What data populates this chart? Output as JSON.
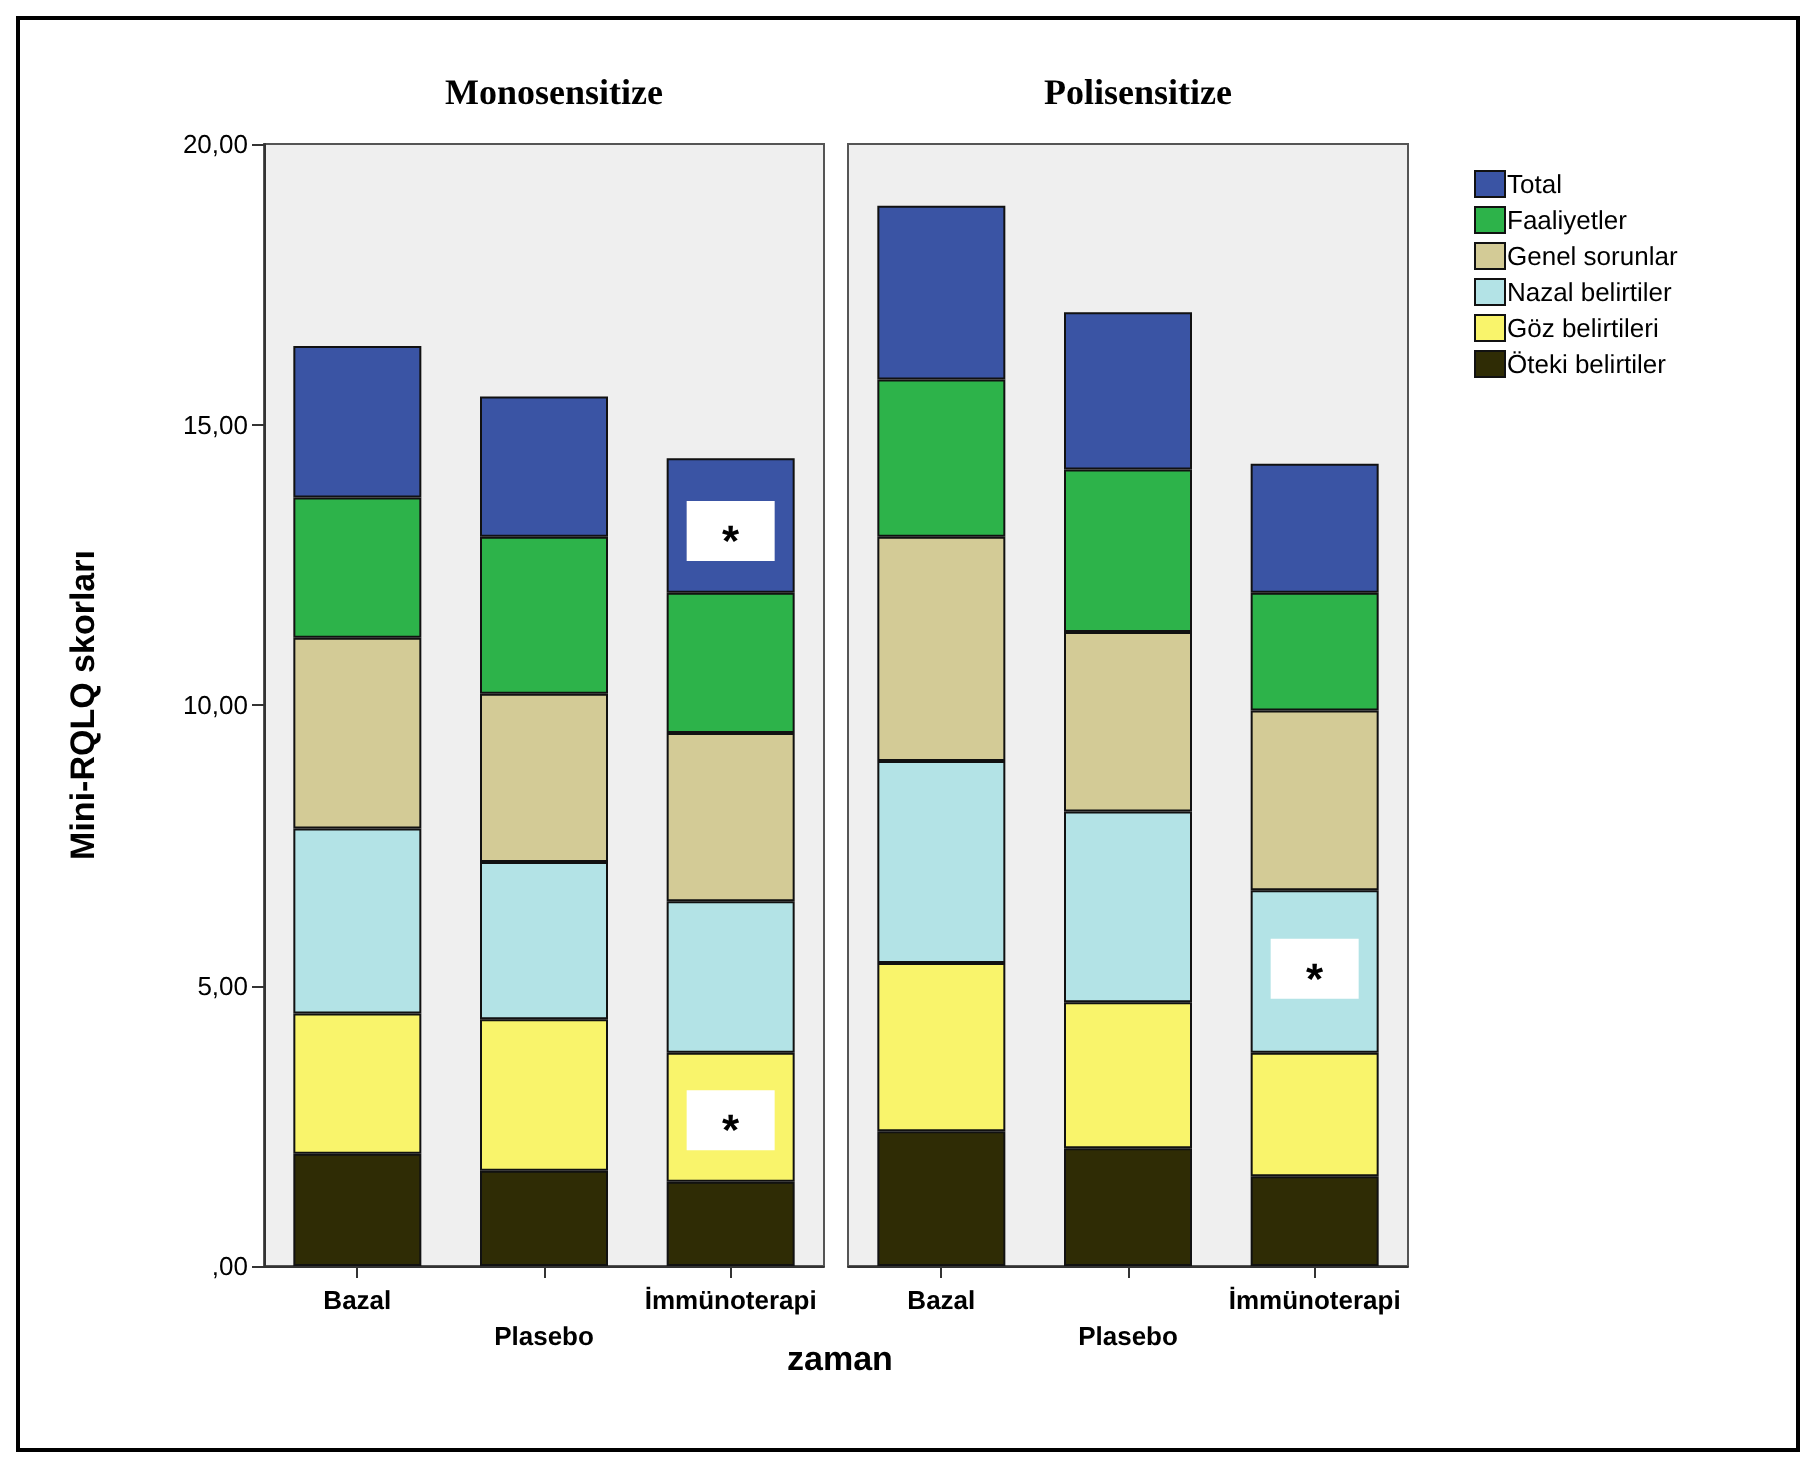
{
  "chart_data": [
    {
      "type": "bar",
      "title": "Monosensitize",
      "ylabel": "Mini-RQLQ skorları",
      "xlabel": "zaman",
      "categories": [
        "Bazal",
        "Plasebo",
        "İmmünoterapi"
      ],
      "stacked": true,
      "ylim": [
        0,
        20
      ],
      "yticks": [
        {
          "value": 0,
          "label": ",00"
        },
        {
          "value": 5,
          "label": "5,00"
        },
        {
          "value": 10,
          "label": "10,00"
        },
        {
          "value": 15,
          "label": "15,00"
        },
        {
          "value": 20,
          "label": "20,00"
        }
      ],
      "grid": false,
      "legend": false,
      "series": [
        {
          "color": "#2f2c05",
          "values": [
            2.0,
            1.7,
            1.5
          ]
        },
        {
          "color": "#f9f46b",
          "values": [
            2.5,
            2.7,
            2.3
          ]
        },
        {
          "color": "#b3e3e6",
          "values": [
            3.3,
            2.8,
            2.7
          ]
        },
        {
          "color": "#d3cb96",
          "values": [
            3.4,
            3.0,
            3.0
          ]
        },
        {
          "color": "#2db34a",
          "values": [
            2.5,
            2.8,
            2.5
          ]
        },
        {
          "color": "#3a54a4",
          "values": [
            2.7,
            2.5,
            2.4
          ]
        }
      ],
      "annotations": [
        {
          "text": "*",
          "x": "İmmünoterapi",
          "y": 13.1
        },
        {
          "text": "*",
          "x": "İmmünoterapi",
          "y": 2.6
        }
      ]
    },
    {
      "type": "bar",
      "title": "Polisensitize",
      "categories": [
        "Bazal",
        "Plasebo",
        "İmmünoterapi"
      ],
      "stacked": true,
      "ylim": [
        0,
        20
      ],
      "tick_labels": "x",
      "grid": false,
      "legend": "right",
      "series": [
        {
          "name": "Öteki belirtiler",
          "color": "#2f2c05",
          "values": [
            2.4,
            2.1,
            1.6
          ]
        },
        {
          "name": "Göz belirtileri",
          "color": "#f9f46b",
          "values": [
            3.0,
            2.6,
            2.2
          ]
        },
        {
          "name": "Nazal belirtiler",
          "color": "#b3e3e6",
          "values": [
            3.6,
            3.4,
            2.9
          ]
        },
        {
          "name": "Genel sorunlar",
          "color": "#d3cb96",
          "values": [
            4.0,
            3.2,
            3.2
          ]
        },
        {
          "name": "Faaliyetler",
          "color": "#2db34a",
          "values": [
            2.8,
            2.9,
            2.1
          ]
        },
        {
          "name": "Total",
          "color": "#3a54a4",
          "values": [
            3.1,
            2.8,
            2.3
          ]
        }
      ],
      "annotations": [
        {
          "text": "*",
          "x": "İmmünoterapi",
          "y": 5.3
        }
      ]
    }
  ]
}
